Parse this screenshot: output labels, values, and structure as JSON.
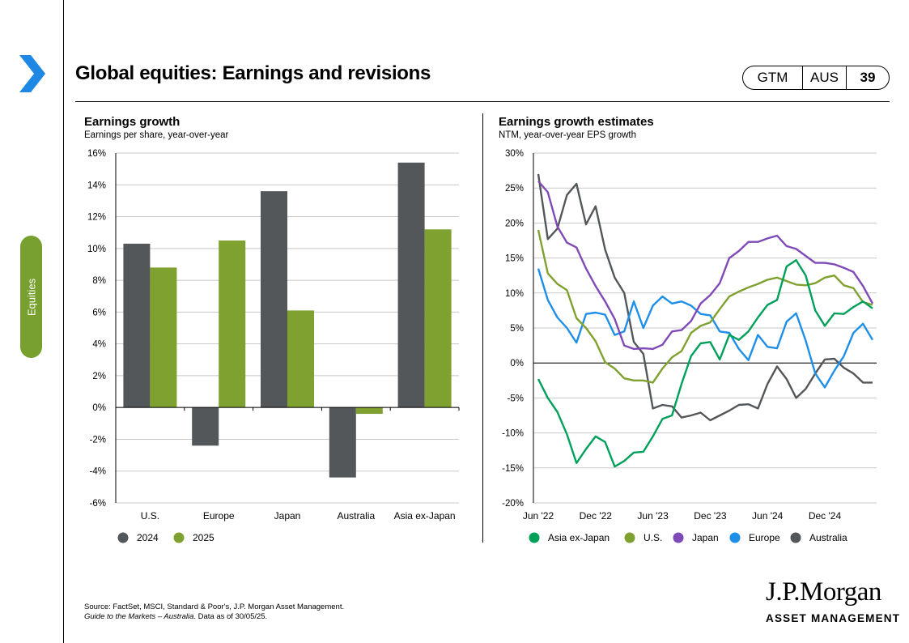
{
  "header": {
    "title": "Global equities: Earnings and revisions",
    "badge": {
      "region": "GTM",
      "country": "AUS",
      "page": "39"
    }
  },
  "sidebar": {
    "tab_label": "Equities"
  },
  "colors": {
    "accent_green": "#77a02f",
    "chevron_blue": "#1e88e5"
  },
  "chart_data": [
    {
      "type": "bar",
      "title": "Earnings growth",
      "subtitle": "Earnings per share, year-over-year",
      "categories": [
        "U.S.",
        "Europe",
        "Japan",
        "Australia",
        "Asia ex-Japan"
      ],
      "series": [
        {
          "name": "2024",
          "color": "#53575a",
          "values": [
            10.3,
            -2.4,
            13.6,
            -4.4,
            15.4
          ]
        },
        {
          "name": "2025",
          "color": "#7ea12f",
          "values": [
            8.8,
            10.5,
            6.1,
            -0.4,
            11.2
          ]
        }
      ],
      "ylim": [
        -6,
        16
      ],
      "yticks": [
        16,
        14,
        12,
        10,
        8,
        6,
        4,
        2,
        0,
        -2,
        -4,
        -6
      ],
      "ytick_labels": [
        "16%",
        "14%",
        "12%",
        "10%",
        "8%",
        "6%",
        "4%",
        "2%",
        "0%",
        "-2%",
        "-4%",
        "-6%"
      ],
      "grid": true,
      "legend_position": "bottom-left"
    },
    {
      "type": "line",
      "title": "Earnings growth estimates",
      "subtitle": "NTM, year-over-year EPS growth",
      "x": [
        "Jun '22",
        "Jul '22",
        "Aug '22",
        "Sep '22",
        "Oct '22",
        "Nov '22",
        "Dec '22",
        "Jan '23",
        "Feb '23",
        "Mar '23",
        "Apr '23",
        "May '23",
        "Jun '23",
        "Jul '23",
        "Aug '23",
        "Sep '23",
        "Oct '23",
        "Nov '23",
        "Dec '23",
        "Jan '24",
        "Feb '24",
        "Mar '24",
        "Apr '24",
        "May '24",
        "Jun '24",
        "Jul '24",
        "Aug '24",
        "Sep '24",
        "Oct '24",
        "Nov '24",
        "Dec '24",
        "Jan '25",
        "Feb '25",
        "Mar '25",
        "Apr '25",
        "May '25"
      ],
      "xtick_labels": [
        "Jun '22",
        "Dec '22",
        "Jun '23",
        "Dec '23",
        "Jun '24",
        "Dec '24"
      ],
      "xtick_index": [
        0,
        6,
        12,
        18,
        24,
        30
      ],
      "ylim": [
        -20,
        30
      ],
      "yticks": [
        30,
        25,
        20,
        15,
        10,
        5,
        0,
        -5,
        -10,
        -15,
        -20
      ],
      "ytick_labels": [
        "30%",
        "25%",
        "20%",
        "15%",
        "10%",
        "5%",
        "0%",
        "-5%",
        "-10%",
        "-15%",
        "-20%"
      ],
      "grid": true,
      "legend_position": "bottom",
      "series": [
        {
          "name": "Asia ex-Japan",
          "color": "#00a05a",
          "values": [
            -2.3,
            -5.0,
            -7.0,
            -10.2,
            -14.3,
            -12.3,
            -10.5,
            -11.3,
            -14.8,
            -14.0,
            -12.8,
            -12.7,
            -10.5,
            -8.0,
            -7.5,
            -3.0,
            1.0,
            2.8,
            3.0,
            0.5,
            4.0,
            3.3,
            4.5,
            6.5,
            8.3,
            9.0,
            13.8,
            14.7,
            12.5,
            7.5,
            5.3,
            7.1,
            7.0,
            8.0,
            8.8,
            7.8
          ]
        },
        {
          "name": "U.S.",
          "color": "#7ea12f",
          "values": [
            19.0,
            12.8,
            11.3,
            10.4,
            6.4,
            5.0,
            3.1,
            0.1,
            -0.8,
            -2.2,
            -2.5,
            -2.5,
            -2.8,
            -0.8,
            0.8,
            1.7,
            4.3,
            5.3,
            5.8,
            7.7,
            9.5,
            10.2,
            10.8,
            11.3,
            11.9,
            12.2,
            11.7,
            11.2,
            11.1,
            11.4,
            12.2,
            12.5,
            11.1,
            10.7,
            8.7,
            8.3
          ]
        },
        {
          "name": "Japan",
          "color": "#7f4ab8",
          "values": [
            26.0,
            24.4,
            19.5,
            17.2,
            16.5,
            13.5,
            11.0,
            8.8,
            6.3,
            2.5,
            2.0,
            2.1,
            2.0,
            2.6,
            4.5,
            4.7,
            6.0,
            8.5,
            9.7,
            11.4,
            15.0,
            16.0,
            17.3,
            17.3,
            17.8,
            18.2,
            16.7,
            16.3,
            15.3,
            14.3,
            14.3,
            14.1,
            13.6,
            13.0,
            11.0,
            8.5
          ]
        },
        {
          "name": "Europe",
          "color": "#1e8fe8",
          "values": [
            13.5,
            9.0,
            6.5,
            5.0,
            2.9,
            7.0,
            7.2,
            6.9,
            4.0,
            4.5,
            8.8,
            5.0,
            8.2,
            9.5,
            8.5,
            8.8,
            8.2,
            7.0,
            6.8,
            4.5,
            4.3,
            2.0,
            0.4,
            4.0,
            2.3,
            2.1,
            5.9,
            7.1,
            3.2,
            -1.5,
            -3.5,
            -1.1,
            1.0,
            4.3,
            5.6,
            3.3
          ]
        },
        {
          "name": "Australia",
          "color": "#53575a",
          "values": [
            27.0,
            17.7,
            19.2,
            24.0,
            25.6,
            19.8,
            22.4,
            16.2,
            12.2,
            10.0,
            3.0,
            1.3,
            -6.5,
            -6.0,
            -6.2,
            -7.8,
            -7.5,
            -7.1,
            -8.2,
            -7.5,
            -6.8,
            -6.0,
            -5.9,
            -6.5,
            -3.0,
            -0.5,
            -2.3,
            -5.0,
            -3.7,
            -1.5,
            0.5,
            0.6,
            -0.7,
            -1.5,
            -2.8,
            -2.8
          ]
        }
      ]
    }
  ],
  "footer": {
    "source": "Source: FactSet, MSCI,  Standard & Poor's,  J.P. Morgan  Asset Management.",
    "guide_italic": "Guide to the Markets – Australia",
    "guide_rest": ". Data as of 30/05/25."
  },
  "logo": {
    "main": "J.P.Morgan",
    "sub": "ASSET MANAGEMENT"
  }
}
